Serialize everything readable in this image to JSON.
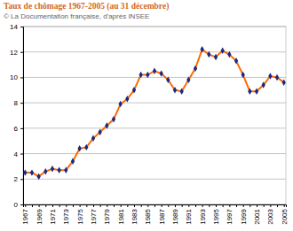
{
  "chart_data": {
    "type": "line",
    "title": "Taux de chômage 1967-2005 (au 31 décembre)",
    "subtitle": "© La Documentation française, d'après INSEE",
    "categories": [
      "1967",
      null,
      "1969",
      null,
      "1971",
      null,
      "1973",
      null,
      "1975",
      null,
      "1977",
      null,
      "1979",
      null,
      "1981",
      null,
      "1983",
      null,
      "1985",
      null,
      "1987",
      null,
      "1989",
      null,
      "1991",
      null,
      "1993",
      null,
      "1995",
      null,
      "1997",
      null,
      "1999",
      null,
      "2001",
      null,
      "2003",
      null,
      "2005"
    ],
    "series": [
      {
        "name": "Taux de chômage",
        "color": "#ff6a00",
        "marker": "diamond",
        "values": [
          2.5,
          2.5,
          2.2,
          2.6,
          2.8,
          2.7,
          2.7,
          3.4,
          4.4,
          4.5,
          5.2,
          5.7,
          6.2,
          6.7,
          7.9,
          8.3,
          9.0,
          10.2,
          10.2,
          10.5,
          10.3,
          9.8,
          9.0,
          8.9,
          9.8,
          10.7,
          12.2,
          11.8,
          11.6,
          12.1,
          11.8,
          11.3,
          10.2,
          8.9,
          8.9,
          9.4,
          10.1,
          10.0,
          9.6
        ]
      }
    ],
    "ylim": [
      0,
      14
    ],
    "yticks": [
      0,
      2,
      4,
      6,
      8,
      10,
      12,
      14
    ],
    "grid": true
  }
}
